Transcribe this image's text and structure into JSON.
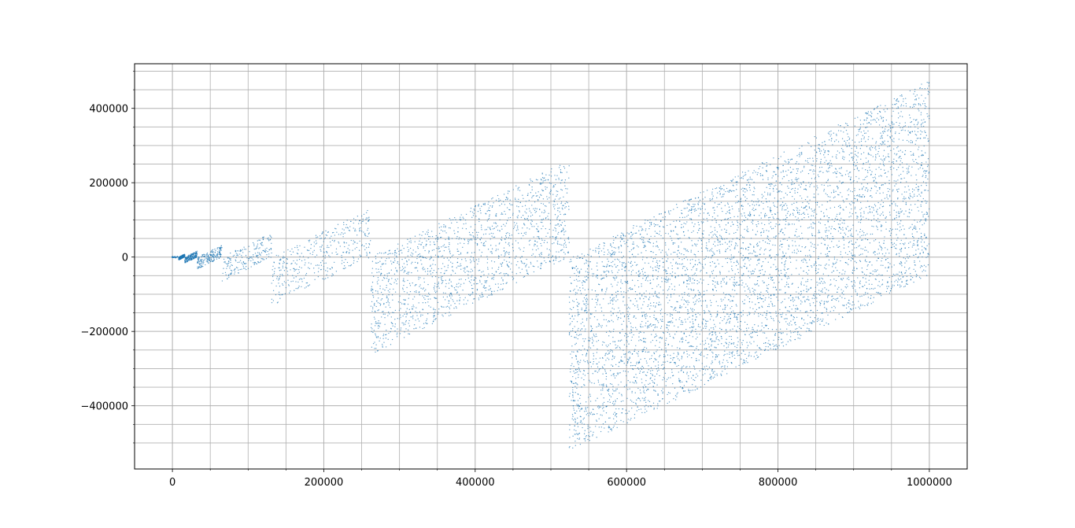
{
  "chart_data": {
    "type": "scatter",
    "title": "",
    "xlabel": "",
    "ylabel": "",
    "xlim": [
      -50000,
      1050000
    ],
    "ylim": [
      -570000,
      520000
    ],
    "grid": "on (major and minor)",
    "marker_color": "#1f77b4",
    "x_ticks": [
      0,
      200000,
      400000,
      600000,
      800000,
      1000000
    ],
    "x_tick_labels": [
      "0",
      "200000",
      "400000",
      "600000",
      "800000",
      "1000000"
    ],
    "x_minor_ticks": [
      50000,
      100000,
      150000,
      250000,
      300000,
      350000,
      450000,
      500000,
      550000,
      650000,
      700000,
      750000,
      850000,
      900000,
      950000
    ],
    "y_ticks": [
      -400000,
      -200000,
      0,
      200000,
      400000
    ],
    "y_tick_labels": [
      "−400000",
      "−200000",
      "0",
      "200000",
      "400000"
    ],
    "y_minor_ticks": [
      -500000,
      -450000,
      -350000,
      -300000,
      -250000,
      -150000,
      -100000,
      -50000,
      50000,
      100000,
      150000,
      250000,
      300000,
      350000,
      450000,
      500000
    ],
    "series": [
      {
        "marker": "point",
        "note_blocks": "points fill parallelograms; each block spans x in [2^k, 2^(k+1)] with y between x - 2^(k+1) and x - 2^k",
        "blocks": [
          {
            "x_start": 8192,
            "x_end": 16384
          },
          {
            "x_start": 16384,
            "x_end": 32768
          },
          {
            "x_start": 32768,
            "x_end": 65536
          },
          {
            "x_start": 65536,
            "x_end": 131072
          },
          {
            "x_start": 131072,
            "x_end": 262144
          },
          {
            "x_start": 262144,
            "x_end": 524288
          },
          {
            "x_start": 524288,
            "x_end": 1000000
          }
        ]
      }
    ]
  }
}
